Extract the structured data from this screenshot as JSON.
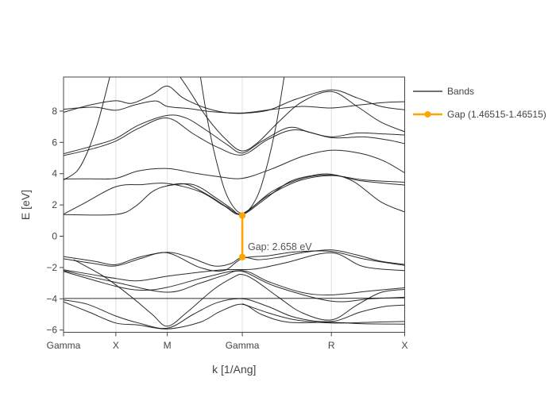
{
  "figure": {
    "background": "#ffffff",
    "band_color": "#1a1a1a",
    "accent_color": "#ffa500",
    "grid_color": "#e4e4e4",
    "axis_color": "#444444"
  },
  "legend": {
    "items": [
      {
        "label": "Bands",
        "type": "line",
        "color": "#1a1a1a"
      },
      {
        "label": "Gap (1.46515-1.46515)",
        "type": "line-marker",
        "color": "#ffa500"
      }
    ]
  },
  "chart_data": {
    "type": "line",
    "title": "",
    "xlabel": "k [1/Ang]",
    "ylabel": "E [eV]",
    "x_ticks": {
      "labels": [
        "Gamma",
        "X",
        "M",
        "Gamma",
        "R",
        "X"
      ],
      "positions": [
        0.0,
        0.1533,
        0.3041,
        0.524,
        0.7851,
        1.0
      ]
    },
    "y_ticks": {
      "values": [
        8,
        6,
        4,
        2,
        0,
        -2,
        -4,
        -6
      ],
      "labels": [
        "8",
        "6",
        "4",
        "2",
        "0",
        "−2",
        "−4",
        "−6"
      ]
    },
    "ylim": [
      -6.15,
      10.2
    ],
    "grid": "vertical-only",
    "legend_position": "top-right",
    "gap": {
      "label": "Gap: 2.658 eV",
      "value_ev": 2.658,
      "k_frac": 0.524,
      "e_from": -1.333,
      "e_to": 1.325,
      "color": "#ffa500"
    },
    "series": [
      {
        "name": "band-parabola-gamma1",
        "points": [
          [
            0,
            3.6
          ],
          [
            0.04,
            4.18
          ],
          [
            0.07,
            5.38
          ],
          [
            0.1,
            7.23
          ],
          [
            0.125,
            9.27
          ],
          [
            0.148,
            11.3
          ]
        ]
      },
      {
        "name": "band-parabola-gamma2",
        "points": [
          [
            0.394,
            11.2
          ],
          [
            0.424,
            7.2
          ],
          [
            0.454,
            4.3
          ],
          [
            0.484,
            2.37
          ],
          [
            0.524,
            1.45
          ],
          [
            0.564,
            2.37
          ],
          [
            0.594,
            4.3
          ],
          [
            0.624,
            7.2
          ],
          [
            0.654,
            11.2
          ]
        ]
      },
      {
        "name": "band-t2g-1",
        "points": [
          [
            0,
            1.38
          ],
          [
            0.1533,
            1.39
          ],
          [
            0.21,
            1.9
          ],
          [
            0.26,
            2.85
          ],
          [
            0.3041,
            3.22
          ],
          [
            0.36,
            3.32
          ],
          [
            0.43,
            2.55
          ],
          [
            0.48,
            1.85
          ],
          [
            0.524,
            1.4
          ],
          [
            0.58,
            2.2
          ],
          [
            0.66,
            3.45
          ],
          [
            0.73,
            3.88
          ],
          [
            0.7851,
            3.96
          ],
          [
            0.85,
            3.5
          ],
          [
            0.93,
            2.2
          ],
          [
            1.0,
            1.55
          ]
        ]
      },
      {
        "name": "band-t2g-2",
        "points": [
          [
            0,
            1.41
          ],
          [
            0.06,
            2.1
          ],
          [
            0.1533,
            3.17
          ],
          [
            0.23,
            3.3
          ],
          [
            0.3041,
            3.37
          ],
          [
            0.4,
            2.85
          ],
          [
            0.47,
            1.95
          ],
          [
            0.524,
            1.42
          ],
          [
            0.61,
            2.85
          ],
          [
            0.7,
            3.7
          ],
          [
            0.7851,
            3.92
          ],
          [
            0.87,
            3.55
          ],
          [
            1.0,
            3.27
          ]
        ]
      },
      {
        "name": "band-t2g-3",
        "points": [
          [
            0.3041,
            3.24
          ],
          [
            0.38,
            3.3
          ],
          [
            0.45,
            2.4
          ],
          [
            0.49,
            1.8
          ],
          [
            0.524,
            1.44
          ],
          [
            0.6,
            2.6
          ],
          [
            0.69,
            3.55
          ],
          [
            0.7851,
            3.88
          ],
          [
            0.88,
            3.6
          ],
          [
            1.0,
            3.45
          ]
        ]
      },
      {
        "name": "band-eg",
        "points": [
          [
            0,
            3.66
          ],
          [
            0.08,
            3.67
          ],
          [
            0.1533,
            3.7
          ],
          [
            0.22,
            4.18
          ],
          [
            0.3041,
            4.33
          ],
          [
            0.38,
            4.05
          ],
          [
            0.45,
            3.82
          ],
          [
            0.524,
            3.7
          ],
          [
            0.61,
            4.3
          ],
          [
            0.7,
            5.1
          ],
          [
            0.7851,
            5.5
          ],
          [
            0.87,
            5.3
          ],
          [
            0.94,
            4.8
          ],
          [
            1.0,
            4.05
          ]
        ]
      },
      {
        "name": "band-mid-1",
        "points": [
          [
            0,
            5.27
          ],
          [
            0.09,
            5.8
          ],
          [
            0.1533,
            6.25
          ],
          [
            0.22,
            7.1
          ],
          [
            0.3041,
            7.72
          ],
          [
            0.36,
            7.55
          ],
          [
            0.42,
            6.75
          ],
          [
            0.48,
            5.85
          ],
          [
            0.524,
            5.32
          ],
          [
            0.58,
            6.05
          ],
          [
            0.66,
            6.95
          ],
          [
            0.72,
            6.65
          ],
          [
            0.7851,
            6.35
          ],
          [
            0.86,
            6.6
          ],
          [
            0.93,
            6.55
          ],
          [
            1.0,
            6.47
          ]
        ]
      },
      {
        "name": "band-mid-2",
        "points": [
          [
            0,
            5.15
          ],
          [
            0.09,
            5.62
          ],
          [
            0.1533,
            6.08
          ],
          [
            0.22,
            6.9
          ],
          [
            0.3041,
            7.56
          ],
          [
            0.38,
            6.55
          ],
          [
            0.45,
            5.7
          ],
          [
            0.524,
            5.2
          ],
          [
            0.6,
            6.2
          ],
          [
            0.68,
            6.8
          ],
          [
            0.7851,
            6.3
          ],
          [
            0.88,
            6.35
          ],
          [
            0.95,
            6.15
          ],
          [
            1.0,
            5.92
          ]
        ]
      },
      {
        "name": "band-top-1",
        "points": [
          [
            0,
            7.92
          ],
          [
            0.08,
            8.4
          ],
          [
            0.1533,
            8.66
          ],
          [
            0.2,
            8.5
          ],
          [
            0.26,
            9.05
          ],
          [
            0.3041,
            9.6
          ],
          [
            0.35,
            8.85
          ],
          [
            0.41,
            8.25
          ],
          [
            0.47,
            7.92
          ],
          [
            0.524,
            7.86
          ],
          [
            0.6,
            8.05
          ],
          [
            0.68,
            8.75
          ],
          [
            0.7851,
            9.35
          ],
          [
            0.86,
            8.85
          ],
          [
            0.93,
            8.3
          ],
          [
            1.0,
            8.08
          ]
        ]
      },
      {
        "name": "band-top-2",
        "points": [
          [
            0,
            8.12
          ],
          [
            0.09,
            8.25
          ],
          [
            0.1533,
            8.05
          ],
          [
            0.21,
            8.4
          ],
          [
            0.27,
            8.65
          ],
          [
            0.3041,
            8.3
          ],
          [
            0.37,
            8.15
          ],
          [
            0.44,
            7.95
          ],
          [
            0.524,
            7.88
          ],
          [
            0.61,
            8.1
          ],
          [
            0.7,
            8.3
          ],
          [
            0.7851,
            8.2
          ],
          [
            0.87,
            8.4
          ],
          [
            0.94,
            8.55
          ],
          [
            1.0,
            8.6
          ]
        ]
      },
      {
        "name": "band-top-3",
        "points": [
          [
            0.3,
            11.5
          ],
          [
            0.36,
            9.6
          ],
          [
            0.42,
            7.6
          ],
          [
            0.48,
            6.1
          ],
          [
            0.524,
            5.45
          ],
          [
            0.57,
            6.0
          ],
          [
            0.63,
            7.3
          ],
          [
            0.7,
            8.6
          ],
          [
            0.7851,
            9.25
          ],
          [
            0.86,
            8.3
          ],
          [
            0.93,
            7.3
          ],
          [
            1.0,
            6.68
          ]
        ]
      },
      {
        "name": "band-val-1",
        "points": [
          [
            0,
            -1.3
          ],
          [
            0.09,
            -1.6
          ],
          [
            0.1533,
            -1.82
          ],
          [
            0.22,
            -1.35
          ],
          [
            0.3041,
            -1.03
          ],
          [
            0.37,
            -1.35
          ],
          [
            0.44,
            -1.9
          ],
          [
            0.49,
            -1.75
          ],
          [
            0.524,
            -1.34
          ],
          [
            0.57,
            -1.5
          ],
          [
            0.63,
            -1.35
          ],
          [
            0.7,
            -1.05
          ],
          [
            0.7851,
            -0.88
          ],
          [
            0.86,
            -1.2
          ],
          [
            0.93,
            -1.6
          ],
          [
            1.0,
            -1.8
          ]
        ]
      },
      {
        "name": "band-val-2",
        "points": [
          [
            0,
            -1.44
          ],
          [
            0.09,
            -1.75
          ],
          [
            0.1533,
            -1.9
          ],
          [
            0.23,
            -1.4
          ],
          [
            0.3041,
            -1.06
          ],
          [
            0.4,
            -2.0
          ],
          [
            0.47,
            -2.2
          ],
          [
            0.524,
            -1.42
          ],
          [
            0.6,
            -1.25
          ],
          [
            0.68,
            -1.0
          ],
          [
            0.7851,
            -0.97
          ],
          [
            0.88,
            -1.45
          ],
          [
            1.0,
            -1.87
          ]
        ]
      },
      {
        "name": "band-val-3",
        "points": [
          [
            0,
            -2.14
          ],
          [
            0.1533,
            -2.7
          ],
          [
            0.22,
            -2.85
          ],
          [
            0.3041,
            -2.56
          ],
          [
            0.4,
            -2.3
          ],
          [
            0.47,
            -2.14
          ],
          [
            0.56,
            -2.1
          ],
          [
            0.65,
            -1.7
          ],
          [
            0.7851,
            -1.06
          ],
          [
            0.88,
            -1.95
          ],
          [
            1.0,
            -2.2
          ]
        ]
      },
      {
        "name": "band-val-4",
        "points": [
          [
            0,
            -2.25
          ],
          [
            0.1533,
            -3.2
          ],
          [
            0.23,
            -3.45
          ],
          [
            0.3041,
            -3.27
          ],
          [
            0.42,
            -2.6
          ],
          [
            0.524,
            -2.2
          ],
          [
            0.6,
            -2.9
          ],
          [
            0.7,
            -3.6
          ],
          [
            0.7851,
            -3.75
          ],
          [
            0.9,
            -3.5
          ],
          [
            1.0,
            -3.3
          ]
        ]
      },
      {
        "name": "band-val-5",
        "points": [
          [
            0,
            -2.2
          ],
          [
            0.1533,
            -2.95
          ],
          [
            0.3041,
            -3.58
          ],
          [
            0.4,
            -3.0
          ],
          [
            0.47,
            -2.5
          ],
          [
            0.524,
            -2.25
          ],
          [
            0.62,
            -3.2
          ],
          [
            0.7851,
            -4.15
          ],
          [
            0.9,
            -4.0
          ],
          [
            1.0,
            -3.9
          ]
        ]
      },
      {
        "name": "band-flat",
        "points": [
          [
            0,
            -3.98
          ],
          [
            0.25,
            -3.98
          ],
          [
            0.5,
            -3.98
          ],
          [
            0.75,
            -3.97
          ],
          [
            1.0,
            -3.95
          ]
        ]
      },
      {
        "name": "band-deep-1",
        "points": [
          [
            0,
            -4.07
          ],
          [
            0.07,
            -4.35
          ],
          [
            0.1533,
            -5.1
          ],
          [
            0.22,
            -5.55
          ],
          [
            0.3041,
            -5.88
          ],
          [
            0.38,
            -5.0
          ],
          [
            0.45,
            -4.25
          ],
          [
            0.524,
            -4.0
          ],
          [
            0.6,
            -4.5
          ],
          [
            0.68,
            -5.2
          ],
          [
            0.7851,
            -5.45
          ],
          [
            0.87,
            -4.85
          ],
          [
            0.94,
            -4.5
          ],
          [
            1.0,
            -4.4
          ]
        ]
      },
      {
        "name": "band-deep-2",
        "points": [
          [
            0,
            -4.2
          ],
          [
            0.08,
            -4.9
          ],
          [
            0.1533,
            -5.55
          ],
          [
            0.22,
            -5.68
          ],
          [
            0.3041,
            -5.93
          ],
          [
            0.4,
            -5.5
          ],
          [
            0.46,
            -4.8
          ],
          [
            0.524,
            -4.35
          ],
          [
            0.58,
            -5.0
          ],
          [
            0.66,
            -5.5
          ],
          [
            0.7851,
            -5.5
          ],
          [
            0.88,
            -5.6
          ],
          [
            1.0,
            -5.62
          ]
        ]
      },
      {
        "name": "band-deep-3",
        "points": [
          [
            0.524,
            -4.32
          ],
          [
            0.6,
            -4.9
          ],
          [
            0.68,
            -5.35
          ],
          [
            0.7851,
            -5.55
          ],
          [
            0.9,
            -5.5
          ],
          [
            1.0,
            -5.45
          ]
        ]
      },
      {
        "name": "band-crosser",
        "points": [
          [
            0.03,
            -1.5
          ],
          [
            0.12,
            -2.6
          ],
          [
            0.2,
            -3.9
          ],
          [
            0.26,
            -5.0
          ],
          [
            0.3041,
            -5.75
          ],
          [
            0.36,
            -4.9
          ],
          [
            0.44,
            -3.4
          ],
          [
            0.5,
            -2.6
          ],
          [
            0.524,
            -2.45
          ],
          [
            0.56,
            -2.8
          ],
          [
            0.63,
            -3.9
          ],
          [
            0.7,
            -4.9
          ],
          [
            0.7851,
            -5.35
          ],
          [
            0.86,
            -4.4
          ],
          [
            0.93,
            -3.6
          ],
          [
            1.0,
            -3.4
          ]
        ]
      }
    ]
  }
}
